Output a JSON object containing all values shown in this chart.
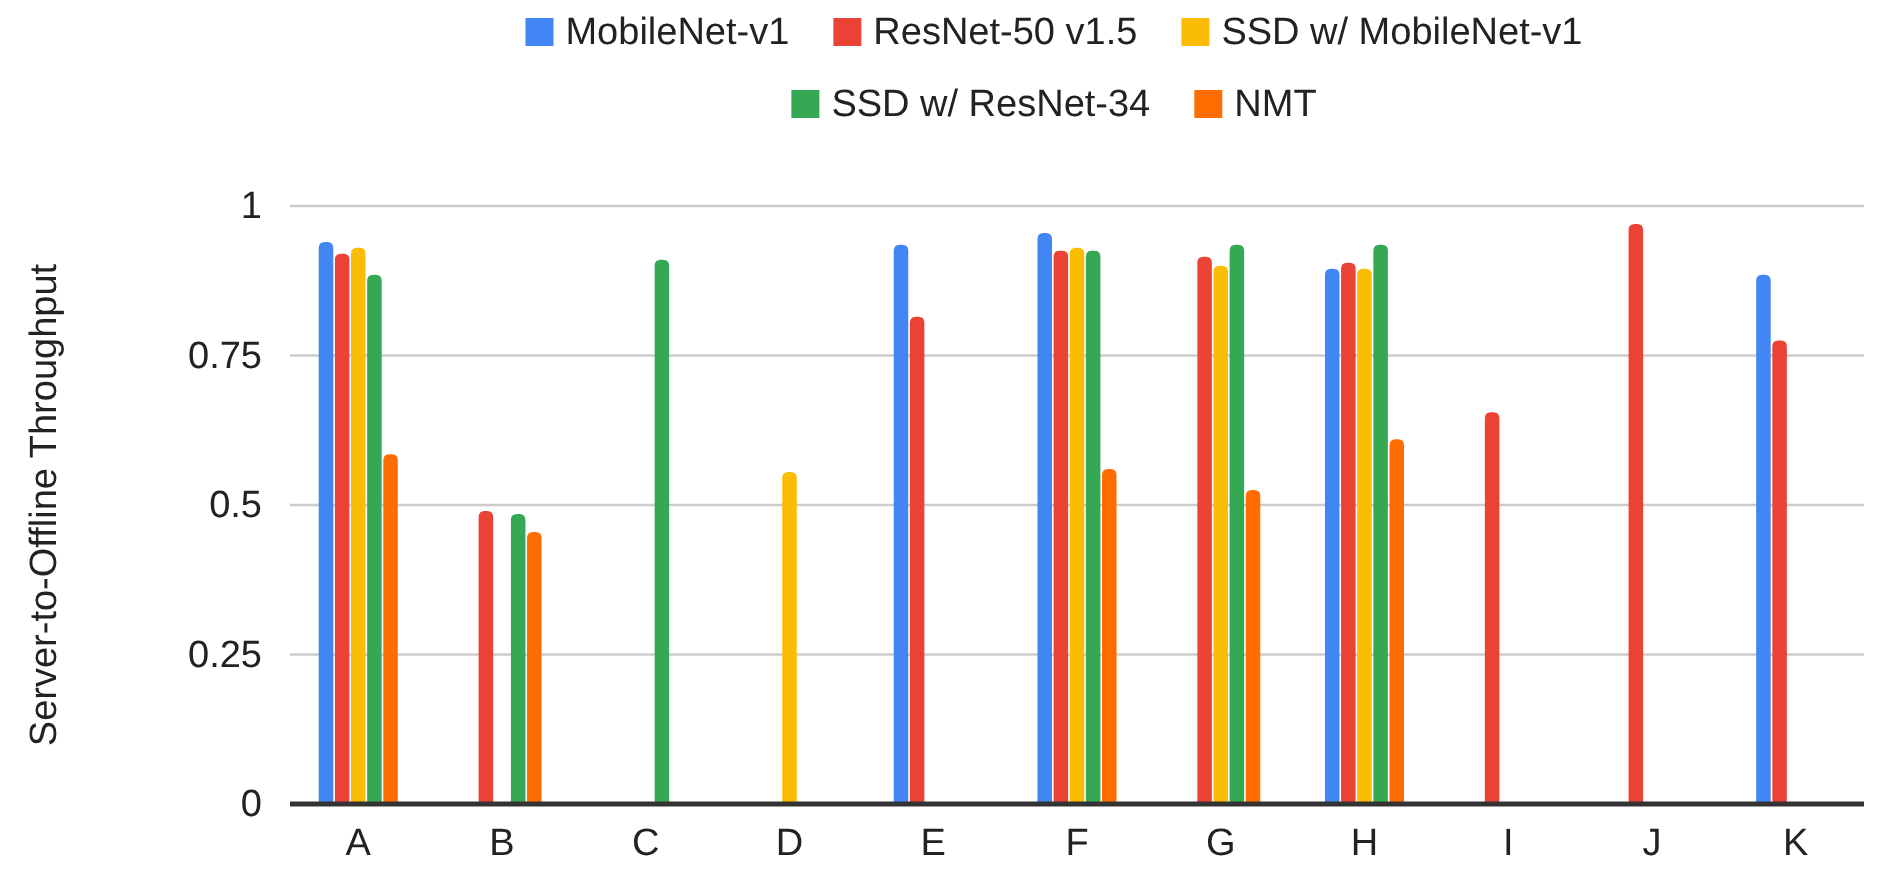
{
  "chart_data": {
    "type": "bar",
    "ylabel": "Server-to-Offline Throughput",
    "categories": [
      "A",
      "B",
      "C",
      "D",
      "E",
      "F",
      "G",
      "H",
      "I",
      "J",
      "K"
    ],
    "series": [
      {
        "name": "MobileNet-v1",
        "color": "#4285f4",
        "values": [
          0.94,
          null,
          null,
          null,
          0.935,
          0.955,
          null,
          0.895,
          null,
          null,
          0.885
        ]
      },
      {
        "name": "ResNet-50 v1.5",
        "color": "#ea4335",
        "values": [
          0.92,
          0.49,
          null,
          null,
          0.815,
          0.925,
          0.915,
          0.905,
          0.655,
          0.97,
          0.775
        ]
      },
      {
        "name": "SSD w/ MobileNet-v1",
        "color": "#fbbc04",
        "values": [
          0.93,
          null,
          null,
          0.555,
          null,
          0.93,
          0.9,
          0.895,
          null,
          null,
          null
        ]
      },
      {
        "name": "SSD w/ ResNet-34",
        "color": "#34a853",
        "values": [
          0.885,
          0.485,
          0.91,
          null,
          null,
          0.925,
          0.935,
          0.935,
          null,
          null,
          null
        ]
      },
      {
        "name": "NMT",
        "color": "#ff6d01",
        "values": [
          0.585,
          0.455,
          null,
          null,
          null,
          0.56,
          0.525,
          0.61,
          null,
          null,
          null
        ]
      }
    ],
    "ylim": [
      0,
      1
    ],
    "yticks": [
      0,
      {
        "value": 0.25,
        "label": "0.25"
      },
      {
        "value": 0.5,
        "label": "0.5"
      },
      {
        "value": 0.75,
        "label": "0.75"
      },
      1
    ],
    "grid": "y",
    "legend": "top"
  }
}
